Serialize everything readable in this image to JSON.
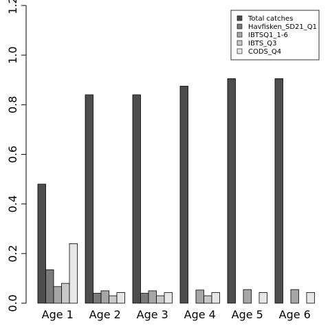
{
  "chart_data": {
    "type": "bar",
    "categories": [
      "Age 1",
      "Age 2",
      "Age 3",
      "Age 4",
      "Age 5",
      "Age 6"
    ],
    "series": [
      {
        "name": "Total catches",
        "color": "#4d4d4d",
        "values": [
          0.48,
          0.84,
          0.84,
          0.875,
          0.905,
          0.905
        ]
      },
      {
        "name": "Havfisken_SD21_Q1",
        "color": "#7a7a7a",
        "values": [
          0.135,
          0.04,
          0.04,
          null,
          null,
          null
        ]
      },
      {
        "name": "IBTSQ1_1-6",
        "color": "#a6a6a6",
        "values": [
          0.067,
          0.05,
          0.05,
          0.053,
          0.055,
          0.055
        ]
      },
      {
        "name": "IBTS_Q3",
        "color": "#c8c8c8",
        "values": [
          0.08,
          0.03,
          0.03,
          0.03,
          null,
          null
        ]
      },
      {
        "name": "CODS_Q4",
        "color": "#e6e6e6",
        "values": [
          0.24,
          0.043,
          0.043,
          0.043,
          0.043,
          0.043
        ]
      }
    ],
    "yticks": [
      "0.0",
      "0.2",
      "0.4",
      "0.6",
      "0.8",
      "1.0",
      "1.2"
    ],
    "ylim": [
      0,
      1.2
    ],
    "legend_position": "top-right"
  }
}
